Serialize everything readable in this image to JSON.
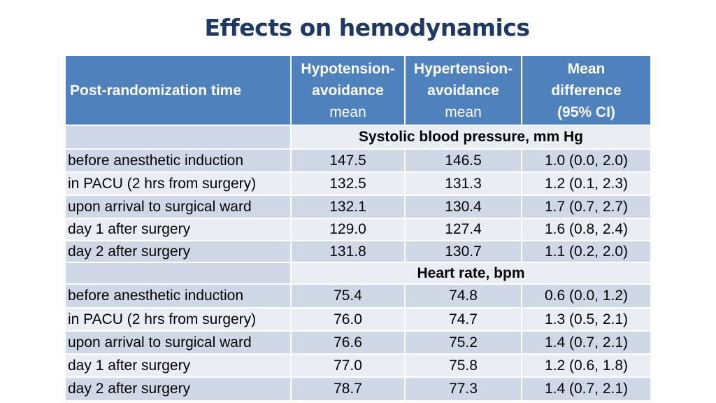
{
  "title": "Effects on hemodynamics",
  "header": {
    "col0": "Post-randomization time",
    "col1_line1": "Hypotension-",
    "col1_line2": "avoidance",
    "col1_line3": "mean",
    "col2_line1": "Hypertension-",
    "col2_line2": "avoidance",
    "col2_line3": "mean",
    "col3_line1": "Mean",
    "col3_line2": "difference",
    "col3_line3": "(95% CI)"
  },
  "sections": [
    {
      "title": "Systolic blood pressure, mm Hg",
      "rows": [
        {
          "time": "before anesthetic induction",
          "hypo": "147.5",
          "hyper": "146.5",
          "diff": "1.0 (0.0, 2.0)"
        },
        {
          "time": "in PACU (2 hrs from surgery)",
          "hypo": "132.5",
          "hyper": "131.3",
          "diff": "1.2 (0.1, 2.3)"
        },
        {
          "time": "upon arrival to surgical ward",
          "hypo": "132.1",
          "hyper": "130.4",
          "diff": "1.7 (0.7, 2.7)"
        },
        {
          "time": "day 1 after surgery",
          "hypo": "129.0",
          "hyper": "127.4",
          "diff": "1.6 (0.8, 2.4)"
        },
        {
          "time": "day 2 after surgery",
          "hypo": "131.8",
          "hyper": "130.7",
          "diff": "1.1 (0.2, 2.0)"
        }
      ]
    },
    {
      "title": "Heart rate, bpm",
      "rows": [
        {
          "time": "before anesthetic induction",
          "hypo": "75.4",
          "hyper": "74.8",
          "diff": "0.6 (0.0, 1.2)"
        },
        {
          "time": "in PACU (2 hrs from surgery)",
          "hypo": "76.0",
          "hyper": "74.7",
          "diff": "1.3 (0.5, 2.1)"
        },
        {
          "time": "upon arrival to surgical ward",
          "hypo": "76.6",
          "hyper": "75.2",
          "diff": "1.4 (0.7, 2.1)"
        },
        {
          "time": "day 1 after surgery",
          "hypo": "77.0",
          "hyper": "75.8",
          "diff": "1.2 (0.6, 1.8)"
        },
        {
          "time": "day 2 after surgery",
          "hypo": "78.7",
          "hyper": "77.3",
          "diff": "1.4 (0.7, 2.1)"
        }
      ]
    }
  ]
}
